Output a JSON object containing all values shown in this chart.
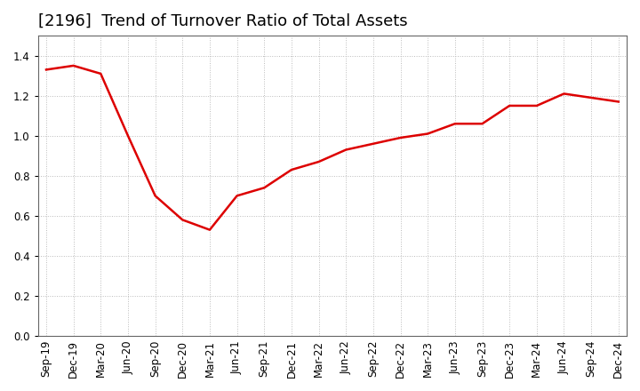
{
  "title": "[2196]  Trend of Turnover Ratio of Total Assets",
  "labels": [
    "Sep-19",
    "Dec-19",
    "Mar-20",
    "Jun-20",
    "Sep-20",
    "Dec-20",
    "Mar-21",
    "Jun-21",
    "Sep-21",
    "Dec-21",
    "Mar-22",
    "Jun-22",
    "Sep-22",
    "Dec-22",
    "Mar-23",
    "Jun-23",
    "Sep-23",
    "Dec-23",
    "Mar-24",
    "Jun-24",
    "Sep-24",
    "Dec-24"
  ],
  "values": [
    1.33,
    1.35,
    1.31,
    1.0,
    0.7,
    0.58,
    0.53,
    0.7,
    0.74,
    0.83,
    0.87,
    0.93,
    0.96,
    0.99,
    1.01,
    1.06,
    1.06,
    1.15,
    1.15,
    1.21,
    1.19,
    1.17
  ],
  "line_color": "#dd0000",
  "background_color": "#ffffff",
  "plot_bg_color": "#ffffff",
  "grid_color": "#bbbbbb",
  "ylim": [
    0.0,
    1.5
  ],
  "yticks": [
    0.0,
    0.2,
    0.4,
    0.6,
    0.8,
    1.0,
    1.2,
    1.4
  ],
  "title_fontsize": 13,
  "tick_fontsize": 8.5,
  "line_width": 1.8
}
